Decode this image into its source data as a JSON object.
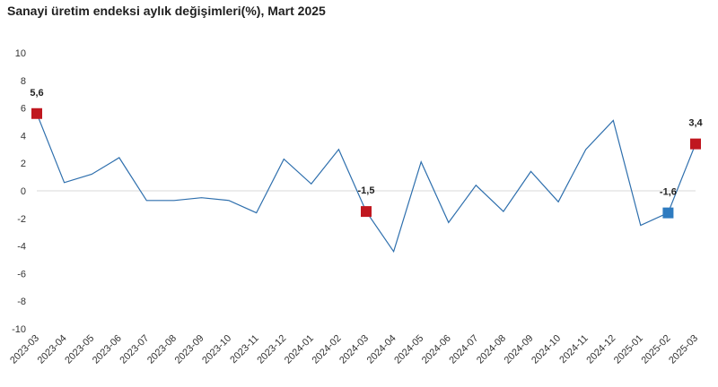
{
  "chart_data": {
    "type": "line",
    "title": "Sanayi üretim endeksi aylık değişimleri(%), Mart 2025",
    "xlabel": "",
    "ylabel": "",
    "ylim": [
      -10,
      10
    ],
    "yticks": [
      "10",
      "8",
      "6",
      "4",
      "2",
      "0",
      "-2",
      "-4",
      "-6",
      "-8",
      "-10"
    ],
    "categories": [
      "2023-03",
      "2023-04",
      "2023-05",
      "2023-06",
      "2023-07",
      "2023-08",
      "2023-09",
      "2023-10",
      "2023-11",
      "2023-12",
      "2024-01",
      "2024-02",
      "2024-03",
      "2024-04",
      "2024-05",
      "2024-06",
      "2024-07",
      "2024-08",
      "2024-09",
      "2024-10",
      "2024-11",
      "2024-12",
      "2025-01",
      "2025-02",
      "2025-03"
    ],
    "series": [
      {
        "values": [
          5.6,
          0.6,
          1.2,
          2.4,
          -0.7,
          -0.7,
          -0.5,
          -0.7,
          -1.6,
          2.3,
          0.5,
          3.0,
          -1.5,
          -4.4,
          2.1,
          -2.3,
          0.4,
          -1.5,
          1.4,
          -0.8,
          3.0,
          5.1,
          -2.5,
          -1.6,
          3.4
        ],
        "color": "#2e6fad"
      }
    ],
    "highlights": [
      {
        "category": "2023-03",
        "label": "5,6",
        "color": "#c0171f"
      },
      {
        "category": "2024-03",
        "label": "-1,5",
        "color": "#c0171f"
      },
      {
        "category": "2025-02",
        "label": "-1,6",
        "color": "#2e7bc0"
      },
      {
        "category": "2025-03",
        "label": "3,4",
        "color": "#c0171f"
      }
    ],
    "grid": false,
    "legend": "none"
  }
}
